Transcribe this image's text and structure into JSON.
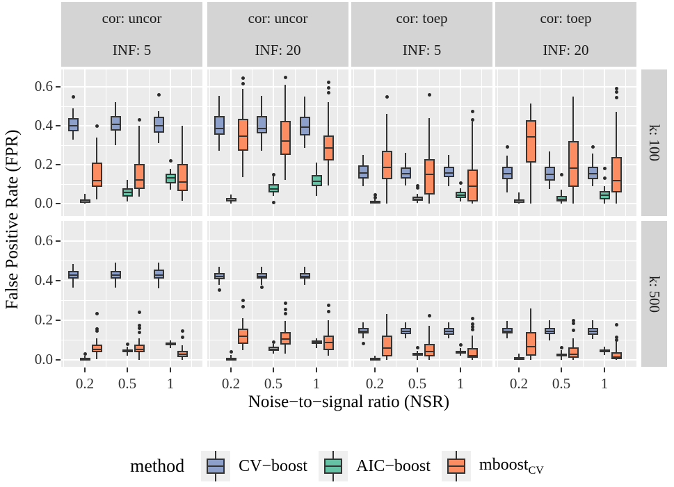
{
  "figure": {
    "y_axis_title": "False Positive Rate (FPR)",
    "x_axis_title": "Noise−to−signal ratio (NSR)"
  },
  "legend": {
    "title": "method",
    "items": [
      {
        "label": "CV−boost",
        "sub": "",
        "color": "#8DA0CB"
      },
      {
        "label": "AIC−boost",
        "sub": "",
        "color": "#66C2A5"
      },
      {
        "label": "mboost",
        "sub": "CV",
        "color": "#FC8D62"
      }
    ]
  },
  "colors": {
    "panel_bg": "#EBEBEB",
    "strip_bg": "#D4D4D4",
    "gridline": "#FFFFFF",
    "box_border": "#333333",
    "outlier": "#2B2B2B",
    "cv_boost": "#8DA0CB",
    "aic_boost": "#66C2A5",
    "mboost_cv": "#FC8D62"
  },
  "chart_data": {
    "type": "boxplot",
    "title": "",
    "xlabel": "Noise−to−signal ratio (NSR)",
    "ylabel": "False Positive Rate (FPR)",
    "x_categories": [
      "0.2",
      "0.5",
      "1"
    ],
    "y_ticks": [
      "0.0",
      "0.2",
      "0.4",
      "0.6"
    ],
    "ylim": [
      -0.06,
      0.7
    ],
    "grid": "major-and-minor-white-on-gray",
    "legend_position": "bottom",
    "methods": [
      "CV−boost",
      "AIC−boost",
      "mboost_CV"
    ],
    "col_facets": [
      {
        "line1": "cor: uncor",
        "line2": "INF: 5"
      },
      {
        "line1": "cor: uncor",
        "line2": "INF: 20"
      },
      {
        "line1": "cor: toep",
        "line2": "INF: 5"
      },
      {
        "line1": "cor: toep",
        "line2": "INF: 20"
      }
    ],
    "row_facets": [
      "k: 100",
      "k: 500"
    ],
    "box_format": [
      "x_index",
      "method_index",
      "whisker_low",
      "q1",
      "median",
      "q3",
      "whisker_high",
      "outliers"
    ],
    "panels": [
      {
        "row": 0,
        "col": 0,
        "boxes": [
          [
            0,
            0,
            0.33,
            0.37,
            0.405,
            0.44,
            0.49,
            [
              0.55
            ]
          ],
          [
            0,
            1,
            0,
            0.002,
            0.01,
            0.02,
            0.05,
            []
          ],
          [
            0,
            2,
            0.02,
            0.085,
            0.12,
            0.21,
            0.34,
            [
              0.4
            ]
          ],
          [
            1,
            0,
            0.3,
            0.375,
            0.41,
            0.45,
            0.52,
            []
          ],
          [
            1,
            1,
            0.01,
            0.035,
            0.06,
            0.08,
            0.12,
            []
          ],
          [
            1,
            2,
            0.035,
            0.075,
            0.125,
            0.205,
            0.4,
            [
              0.43
            ]
          ],
          [
            2,
            0,
            0.31,
            0.365,
            0.405,
            0.445,
            0.475,
            [
              0.56
            ]
          ],
          [
            2,
            1,
            0.07,
            0.105,
            0.135,
            0.155,
            0.18,
            [
              0.22
            ]
          ],
          [
            2,
            2,
            0.015,
            0.065,
            0.115,
            0.205,
            0.4,
            []
          ]
        ]
      },
      {
        "row": 0,
        "col": 1,
        "boxes": [
          [
            0,
            0,
            0.27,
            0.355,
            0.39,
            0.45,
            0.555,
            []
          ],
          [
            0,
            1,
            0,
            0.01,
            0.018,
            0.028,
            0.045,
            []
          ],
          [
            0,
            2,
            0.135,
            0.27,
            0.35,
            0.435,
            0.59,
            [
              0.645,
              0.615
            ]
          ],
          [
            1,
            0,
            0.27,
            0.36,
            0.39,
            0.45,
            0.555,
            []
          ],
          [
            1,
            1,
            0.04,
            0.058,
            0.08,
            0.1,
            0.14,
            [
              0.148,
              0.005
            ]
          ],
          [
            1,
            2,
            0.12,
            0.25,
            0.325,
            0.425,
            0.61,
            [
              0.65
            ]
          ],
          [
            2,
            0,
            0.285,
            0.35,
            0.395,
            0.447,
            0.55,
            []
          ],
          [
            2,
            1,
            0.04,
            0.09,
            0.118,
            0.147,
            0.21,
            []
          ],
          [
            2,
            2,
            0.093,
            0.22,
            0.29,
            0.35,
            0.52,
            [
              0.625,
              0.595,
              0.57
            ]
          ]
        ]
      },
      {
        "row": 0,
        "col": 2,
        "boxes": [
          [
            0,
            0,
            0.09,
            0.13,
            0.162,
            0.196,
            0.25,
            []
          ],
          [
            0,
            1,
            0,
            0,
            0.007,
            0.015,
            0.025,
            [
              0.045,
              0.032
            ]
          ],
          [
            0,
            2,
            0,
            0.125,
            0.19,
            0.27,
            0.46,
            [
              0.55
            ]
          ],
          [
            1,
            0,
            0.094,
            0.129,
            0.156,
            0.187,
            0.26,
            []
          ],
          [
            1,
            1,
            0.005,
            0.016,
            0.025,
            0.037,
            0.05,
            [
              0.092,
              0.08
            ]
          ],
          [
            1,
            2,
            0,
            0.046,
            0.152,
            0.23,
            0.44,
            [
              0.56
            ]
          ],
          [
            2,
            0,
            0.09,
            0.135,
            0.16,
            0.19,
            0.25,
            []
          ],
          [
            2,
            1,
            0.01,
            0.03,
            0.045,
            0.06,
            0.08,
            [
              0.105
            ]
          ],
          [
            2,
            2,
            0,
            0.012,
            0.093,
            0.175,
            0.42,
            [
              0.475,
              0.43
            ]
          ]
        ]
      },
      {
        "row": 0,
        "col": 3,
        "boxes": [
          [
            0,
            0,
            0.057,
            0.124,
            0.156,
            0.19,
            0.247,
            [
              0.29
            ]
          ],
          [
            0,
            1,
            0,
            0.002,
            0.01,
            0.02,
            0.057,
            []
          ],
          [
            0,
            2,
            0,
            0.21,
            0.348,
            0.43,
            0.515,
            []
          ],
          [
            1,
            0,
            0.076,
            0.118,
            0.153,
            0.189,
            0.268,
            []
          ],
          [
            1,
            1,
            0,
            0.012,
            0.025,
            0.04,
            0.07,
            [
              0.15
            ]
          ],
          [
            1,
            2,
            0,
            0.086,
            0.187,
            0.323,
            0.55,
            []
          ],
          [
            2,
            0,
            0.088,
            0.124,
            0.156,
            0.19,
            0.258,
            [
              0.29
            ]
          ],
          [
            2,
            1,
            0,
            0.023,
            0.045,
            0.065,
            0.09,
            [
              0.18,
              0.13
            ]
          ],
          [
            2,
            2,
            0,
            0.058,
            0.122,
            0.24,
            0.47,
            [
              0.59,
              0.575,
              0.545
            ]
          ]
        ]
      },
      {
        "row": 1,
        "col": 0,
        "boxes": [
          [
            0,
            0,
            0.364,
            0.41,
            0.43,
            0.45,
            0.485,
            []
          ],
          [
            0,
            1,
            0,
            0.001,
            0.005,
            0.01,
            0.02,
            [
              0.03
            ]
          ],
          [
            0,
            2,
            0.003,
            0.04,
            0.055,
            0.077,
            0.11,
            [
              0.155,
              0.145,
              0.235
            ]
          ],
          [
            1,
            0,
            0.365,
            0.41,
            0.43,
            0.45,
            0.49,
            []
          ],
          [
            1,
            1,
            0.02,
            0.038,
            0.045,
            0.052,
            0.065,
            [
              0.078
            ]
          ],
          [
            1,
            2,
            0,
            0.037,
            0.057,
            0.077,
            0.11,
            [
              0.14,
              0.158,
              0.172,
              0.24
            ]
          ],
          [
            2,
            0,
            0.36,
            0.41,
            0.432,
            0.455,
            0.49,
            []
          ],
          [
            2,
            1,
            0.06,
            0.074,
            0.08,
            0.088,
            0.1,
            []
          ],
          [
            2,
            2,
            0,
            0.015,
            0.03,
            0.047,
            0.075,
            [
              0.145,
              0.113
            ]
          ]
        ]
      },
      {
        "row": 1,
        "col": 1,
        "boxes": [
          [
            0,
            0,
            0.38,
            0.407,
            0.424,
            0.44,
            0.47,
            [
              0.353
            ]
          ],
          [
            0,
            1,
            0,
            0.001,
            0.005,
            0.012,
            0.025,
            [
              0.04
            ]
          ],
          [
            0,
            2,
            0.05,
            0.082,
            0.122,
            0.157,
            0.21,
            [
              0.3,
              0.27
            ]
          ],
          [
            1,
            0,
            0.38,
            0.41,
            0.425,
            0.44,
            0.47,
            [
              0.368
            ]
          ],
          [
            1,
            1,
            0.03,
            0.046,
            0.055,
            0.065,
            0.08,
            [
              0.09
            ]
          ],
          [
            1,
            2,
            0.033,
            0.077,
            0.107,
            0.14,
            0.196,
            [
              0.285,
              0.254,
              0.235
            ]
          ],
          [
            2,
            0,
            0.38,
            0.41,
            0.425,
            0.44,
            0.47,
            []
          ],
          [
            2,
            1,
            0.06,
            0.079,
            0.09,
            0.098,
            0.11,
            []
          ],
          [
            2,
            2,
            0.02,
            0.05,
            0.09,
            0.122,
            0.2,
            [
              0.275,
              0.245
            ]
          ]
        ]
      },
      {
        "row": 1,
        "col": 2,
        "boxes": [
          [
            0,
            0,
            0.11,
            0.134,
            0.148,
            0.16,
            0.19,
            [
              0.084
            ]
          ],
          [
            0,
            1,
            0,
            0.003,
            0.007,
            0.012,
            0.02,
            []
          ],
          [
            0,
            2,
            0,
            0.017,
            0.063,
            0.122,
            0.23,
            []
          ],
          [
            1,
            0,
            0.11,
            0.13,
            0.148,
            0.163,
            0.19,
            []
          ],
          [
            1,
            1,
            0,
            0.022,
            0.028,
            0.035,
            0.045,
            [
              0.06
            ]
          ],
          [
            1,
            2,
            0,
            0.017,
            0.045,
            0.08,
            0.172,
            [
              0.224
            ]
          ],
          [
            2,
            0,
            0.108,
            0.128,
            0.148,
            0.163,
            0.19,
            []
          ],
          [
            2,
            1,
            0.02,
            0.033,
            0.04,
            0.045,
            0.06,
            [
              0.077
            ]
          ],
          [
            2,
            2,
            0,
            0.01,
            0.025,
            0.06,
            0.122,
            [
              0.21,
              0.18,
              0.165,
              0.153
            ]
          ]
        ]
      },
      {
        "row": 1,
        "col": 3,
        "boxes": [
          [
            0,
            0,
            0.11,
            0.132,
            0.148,
            0.16,
            0.195,
            []
          ],
          [
            0,
            1,
            0,
            0.003,
            0.009,
            0.015,
            0.033,
            []
          ],
          [
            0,
            2,
            0,
            0.022,
            0.07,
            0.142,
            0.26,
            []
          ],
          [
            1,
            0,
            0.1,
            0.13,
            0.148,
            0.16,
            0.2,
            []
          ],
          [
            1,
            1,
            0,
            0.02,
            0.027,
            0.033,
            0.048,
            [
              0.06
            ]
          ],
          [
            1,
            2,
            0,
            0.01,
            0.03,
            0.063,
            0.11,
            [
              0.2,
              0.185,
              0.15
            ]
          ],
          [
            2,
            0,
            0.107,
            0.128,
            0.146,
            0.16,
            0.2,
            []
          ],
          [
            2,
            1,
            0.025,
            0.038,
            0.045,
            0.053,
            0.065,
            []
          ],
          [
            2,
            2,
            0,
            0.005,
            0.016,
            0.04,
            0.11,
            [
              0.176,
              0.115,
              0.1
            ]
          ]
        ]
      }
    ]
  }
}
